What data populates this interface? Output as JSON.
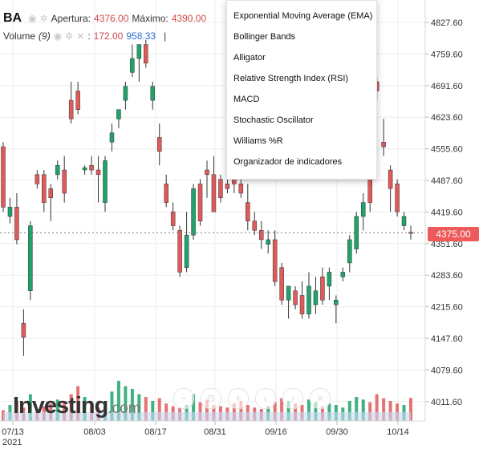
{
  "legend": {
    "symbol": "BA",
    "open_label": "Apertura:",
    "open_value": "4376.00",
    "high_label": "Máximo:",
    "high_value": "4390.00",
    "volume_label": "Volume",
    "volume_period": "(9)",
    "volume_value": "172.00",
    "volume_ma": "958.33",
    "cursor": "|"
  },
  "indicator_menu": {
    "items": [
      "Exponential Moving Average (EMA)",
      "Bollinger Bands",
      "Alligator",
      "Relative Strength Index (RSI)",
      "MACD",
      "Stochastic Oscillator",
      "Williams %R",
      "Organizador de indicadores"
    ]
  },
  "current_price": "4375.00",
  "logo": {
    "name": "Investing",
    "suffix": ".com"
  },
  "zoom_controls": [
    "zoom-out",
    "zoom-reset",
    "zoom-in",
    "scroll-left",
    "scroll-right",
    "reset"
  ],
  "colors": {
    "up": "#1fa36a",
    "down": "#e05a5a",
    "price_tag": "#ee5a5a",
    "volume_area": "#c9d9f2"
  },
  "chart_data": {
    "type": "candlestick",
    "symbol": "BA",
    "y_ticks": [
      "4827.60",
      "4759.60",
      "4691.60",
      "4623.60",
      "4555.60",
      "4487.60",
      "4419.60",
      "4351.60",
      "4283.60",
      "4215.60",
      "4147.60",
      "4079.60",
      "4011.60"
    ],
    "x_ticks": [
      "07/13",
      "08/03",
      "08/17",
      "08/31",
      "09/16",
      "09/30",
      "10/14"
    ],
    "x_year": "2021",
    "last_price": 4375.0,
    "candles": [
      {
        "o": 4560,
        "h": 4570,
        "l": 4420,
        "c": 4430
      },
      {
        "o": 4410,
        "h": 4450,
        "l": 4395,
        "c": 4430
      },
      {
        "o": 4430,
        "h": 4460,
        "l": 4350,
        "c": 4360
      },
      {
        "o": 4180,
        "h": 4210,
        "l": 4110,
        "c": 4150
      },
      {
        "o": 4250,
        "h": 4400,
        "l": 4230,
        "c": 4390
      },
      {
        "o": 4500,
        "h": 4510,
        "l": 4470,
        "c": 4480
      },
      {
        "o": 4500,
        "h": 4510,
        "l": 4420,
        "c": 4440
      },
      {
        "o": 4470,
        "h": 4480,
        "l": 4400,
        "c": 4450
      },
      {
        "o": 4500,
        "h": 4530,
        "l": 4490,
        "c": 4520
      },
      {
        "o": 4510,
        "h": 4540,
        "l": 4440,
        "c": 4460
      },
      {
        "o": 4660,
        "h": 4700,
        "l": 4610,
        "c": 4620
      },
      {
        "o": 4680,
        "h": 4700,
        "l": 4630,
        "c": 4640
      },
      {
        "o": 4510,
        "h": 4520,
        "l": 4500,
        "c": 4515
      },
      {
        "o": 4520,
        "h": 4540,
        "l": 4500,
        "c": 4510
      },
      {
        "o": 4510,
        "h": 4540,
        "l": 4440,
        "c": 4500
      },
      {
        "o": 4440,
        "h": 4540,
        "l": 4420,
        "c": 4530
      },
      {
        "o": 4570,
        "h": 4610,
        "l": 4550,
        "c": 4590
      },
      {
        "o": 4620,
        "h": 4640,
        "l": 4600,
        "c": 4640
      },
      {
        "o": 4660,
        "h": 4700,
        "l": 4640,
        "c": 4690
      },
      {
        "o": 4720,
        "h": 4780,
        "l": 4710,
        "c": 4750
      },
      {
        "o": 4750,
        "h": 4780,
        "l": 4700,
        "c": 4780
      },
      {
        "o": 4780,
        "h": 4790,
        "l": 4730,
        "c": 4740
      },
      {
        "o": 4660,
        "h": 4700,
        "l": 4640,
        "c": 4690
      },
      {
        "o": 4580,
        "h": 4610,
        "l": 4520,
        "c": 4550
      },
      {
        "o": 4480,
        "h": 4500,
        "l": 4430,
        "c": 4440
      },
      {
        "o": 4420,
        "h": 4440,
        "l": 4380,
        "c": 4390
      },
      {
        "o": 4380,
        "h": 4390,
        "l": 4280,
        "c": 4290
      },
      {
        "o": 4300,
        "h": 4420,
        "l": 4290,
        "c": 4370
      },
      {
        "o": 4370,
        "h": 4480,
        "l": 4360,
        "c": 4470
      },
      {
        "o": 4480,
        "h": 4490,
        "l": 4390,
        "c": 4400
      },
      {
        "o": 4510,
        "h": 4530,
        "l": 4450,
        "c": 4500
      },
      {
        "o": 4500,
        "h": 4540,
        "l": 4420,
        "c": 4420
      },
      {
        "o": 4490,
        "h": 4500,
        "l": 4440,
        "c": 4450
      },
      {
        "o": 4480,
        "h": 4520,
        "l": 4460,
        "c": 4470
      },
      {
        "o": 4500,
        "h": 4520,
        "l": 4460,
        "c": 4480
      },
      {
        "o": 4480,
        "h": 4510,
        "l": 4450,
        "c": 4460
      },
      {
        "o": 4440,
        "h": 4480,
        "l": 4380,
        "c": 4400
      },
      {
        "o": 4400,
        "h": 4420,
        "l": 4370,
        "c": 4380
      },
      {
        "o": 4380,
        "h": 4400,
        "l": 4340,
        "c": 4360
      },
      {
        "o": 4350,
        "h": 4380,
        "l": 4330,
        "c": 4360
      },
      {
        "o": 4360,
        "h": 4380,
        "l": 4260,
        "c": 4270
      },
      {
        "o": 4300,
        "h": 4310,
        "l": 4220,
        "c": 4230
      },
      {
        "o": 4230,
        "h": 4260,
        "l": 4190,
        "c": 4260
      },
      {
        "o": 4250,
        "h": 4260,
        "l": 4210,
        "c": 4220
      },
      {
        "o": 4240,
        "h": 4270,
        "l": 4190,
        "c": 4200
      },
      {
        "o": 4200,
        "h": 4290,
        "l": 4190,
        "c": 4260
      },
      {
        "o": 4220,
        "h": 4280,
        "l": 4200,
        "c": 4250
      },
      {
        "o": 4280,
        "h": 4300,
        "l": 4220,
        "c": 4230
      },
      {
        "o": 4260,
        "h": 4300,
        "l": 4230,
        "c": 4290
      },
      {
        "o": 4220,
        "h": 4240,
        "l": 4180,
        "c": 4230
      },
      {
        "o": 4280,
        "h": 4300,
        "l": 4270,
        "c": 4290
      },
      {
        "o": 4310,
        "h": 4370,
        "l": 4290,
        "c": 4360
      },
      {
        "o": 4340,
        "h": 4420,
        "l": 4330,
        "c": 4410
      },
      {
        "o": 4410,
        "h": 4460,
        "l": 4380,
        "c": 4440
      },
      {
        "o": 4490,
        "h": 4500,
        "l": 4420,
        "c": 4440
      },
      {
        "o": 4700,
        "h": 4710,
        "l": 4660,
        "c": 4680
      },
      {
        "o": 4570,
        "h": 4620,
        "l": 4540,
        "c": 4560
      },
      {
        "o": 4510,
        "h": 4520,
        "l": 4420,
        "c": 4470
      },
      {
        "o": 4480,
        "h": 4490,
        "l": 4410,
        "c": 4420
      },
      {
        "o": 4390,
        "h": 4420,
        "l": 4380,
        "c": 4410
      },
      {
        "o": 4376,
        "h": 4390,
        "l": 4360,
        "c": 4375
      }
    ],
    "volume": [
      80,
      120,
      150,
      100,
      200,
      90,
      110,
      130,
      160,
      140,
      200,
      260,
      180,
      120,
      100,
      150,
      220,
      300,
      260,
      240,
      200,
      180,
      150,
      170,
      130,
      110,
      100,
      120,
      200,
      140,
      160,
      120,
      110,
      100,
      130,
      150,
      120,
      100,
      90,
      110,
      140,
      170,
      150,
      130,
      120,
      160,
      140,
      110,
      130,
      120,
      100,
      150,
      180,
      160,
      140,
      200,
      170,
      150,
      130,
      120,
      172
    ]
  }
}
